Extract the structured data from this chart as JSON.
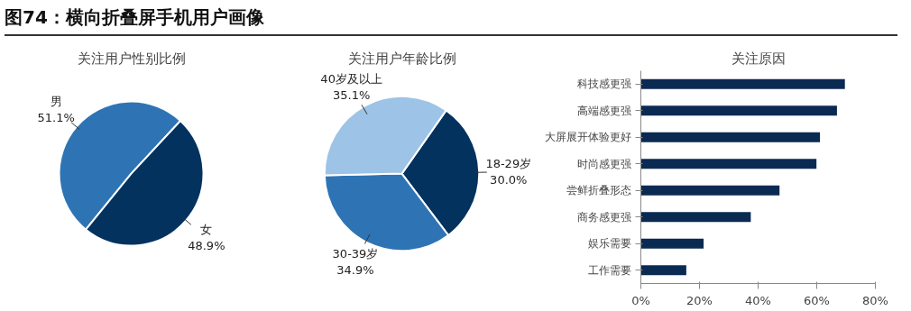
{
  "chart_data": [
    {
      "type": "pie",
      "title": "关注用户性别比例",
      "annotations": [
        "图74：横向折叠屏手机用户画像"
      ],
      "categories": [
        "男",
        "女"
      ],
      "values": [
        51.1,
        48.9
      ],
      "colors": [
        "#2e74b5",
        "#03325f"
      ],
      "value_labels": [
        "51.1%",
        "48.9%"
      ]
    },
    {
      "type": "pie",
      "title": "关注用户年龄比例",
      "categories": [
        "18-29岁",
        "30-39岁",
        "40岁及以上"
      ],
      "values": [
        30.0,
        34.9,
        35.1
      ],
      "colors": [
        "#03325f",
        "#2e74b5",
        "#9dc3e6"
      ],
      "value_labels": [
        "30.0%",
        "34.9%",
        "35.1%"
      ]
    },
    {
      "type": "bar",
      "orientation": "horizontal",
      "title": "关注原因",
      "categories": [
        "科技感更强",
        "高端感更强",
        "大屏展开体验更好",
        "时尚感更强",
        "尝鲜折叠形态",
        "商务感更强",
        "娱乐需要",
        "工作需要"
      ],
      "values": [
        69.6,
        66.9,
        61.1,
        59.9,
        47.3,
        37.5,
        21.4,
        15.5
      ],
      "color": "#0b2a52",
      "xlim": [
        0,
        80
      ],
      "xticks": [
        {
          "value": 0,
          "label": "0%"
        },
        {
          "value": 20,
          "label": "20%"
        },
        {
          "value": 40,
          "label": "40%"
        },
        {
          "value": 60,
          "label": "60%"
        },
        {
          "value": 80,
          "label": "80%"
        }
      ],
      "grid": false
    }
  ]
}
